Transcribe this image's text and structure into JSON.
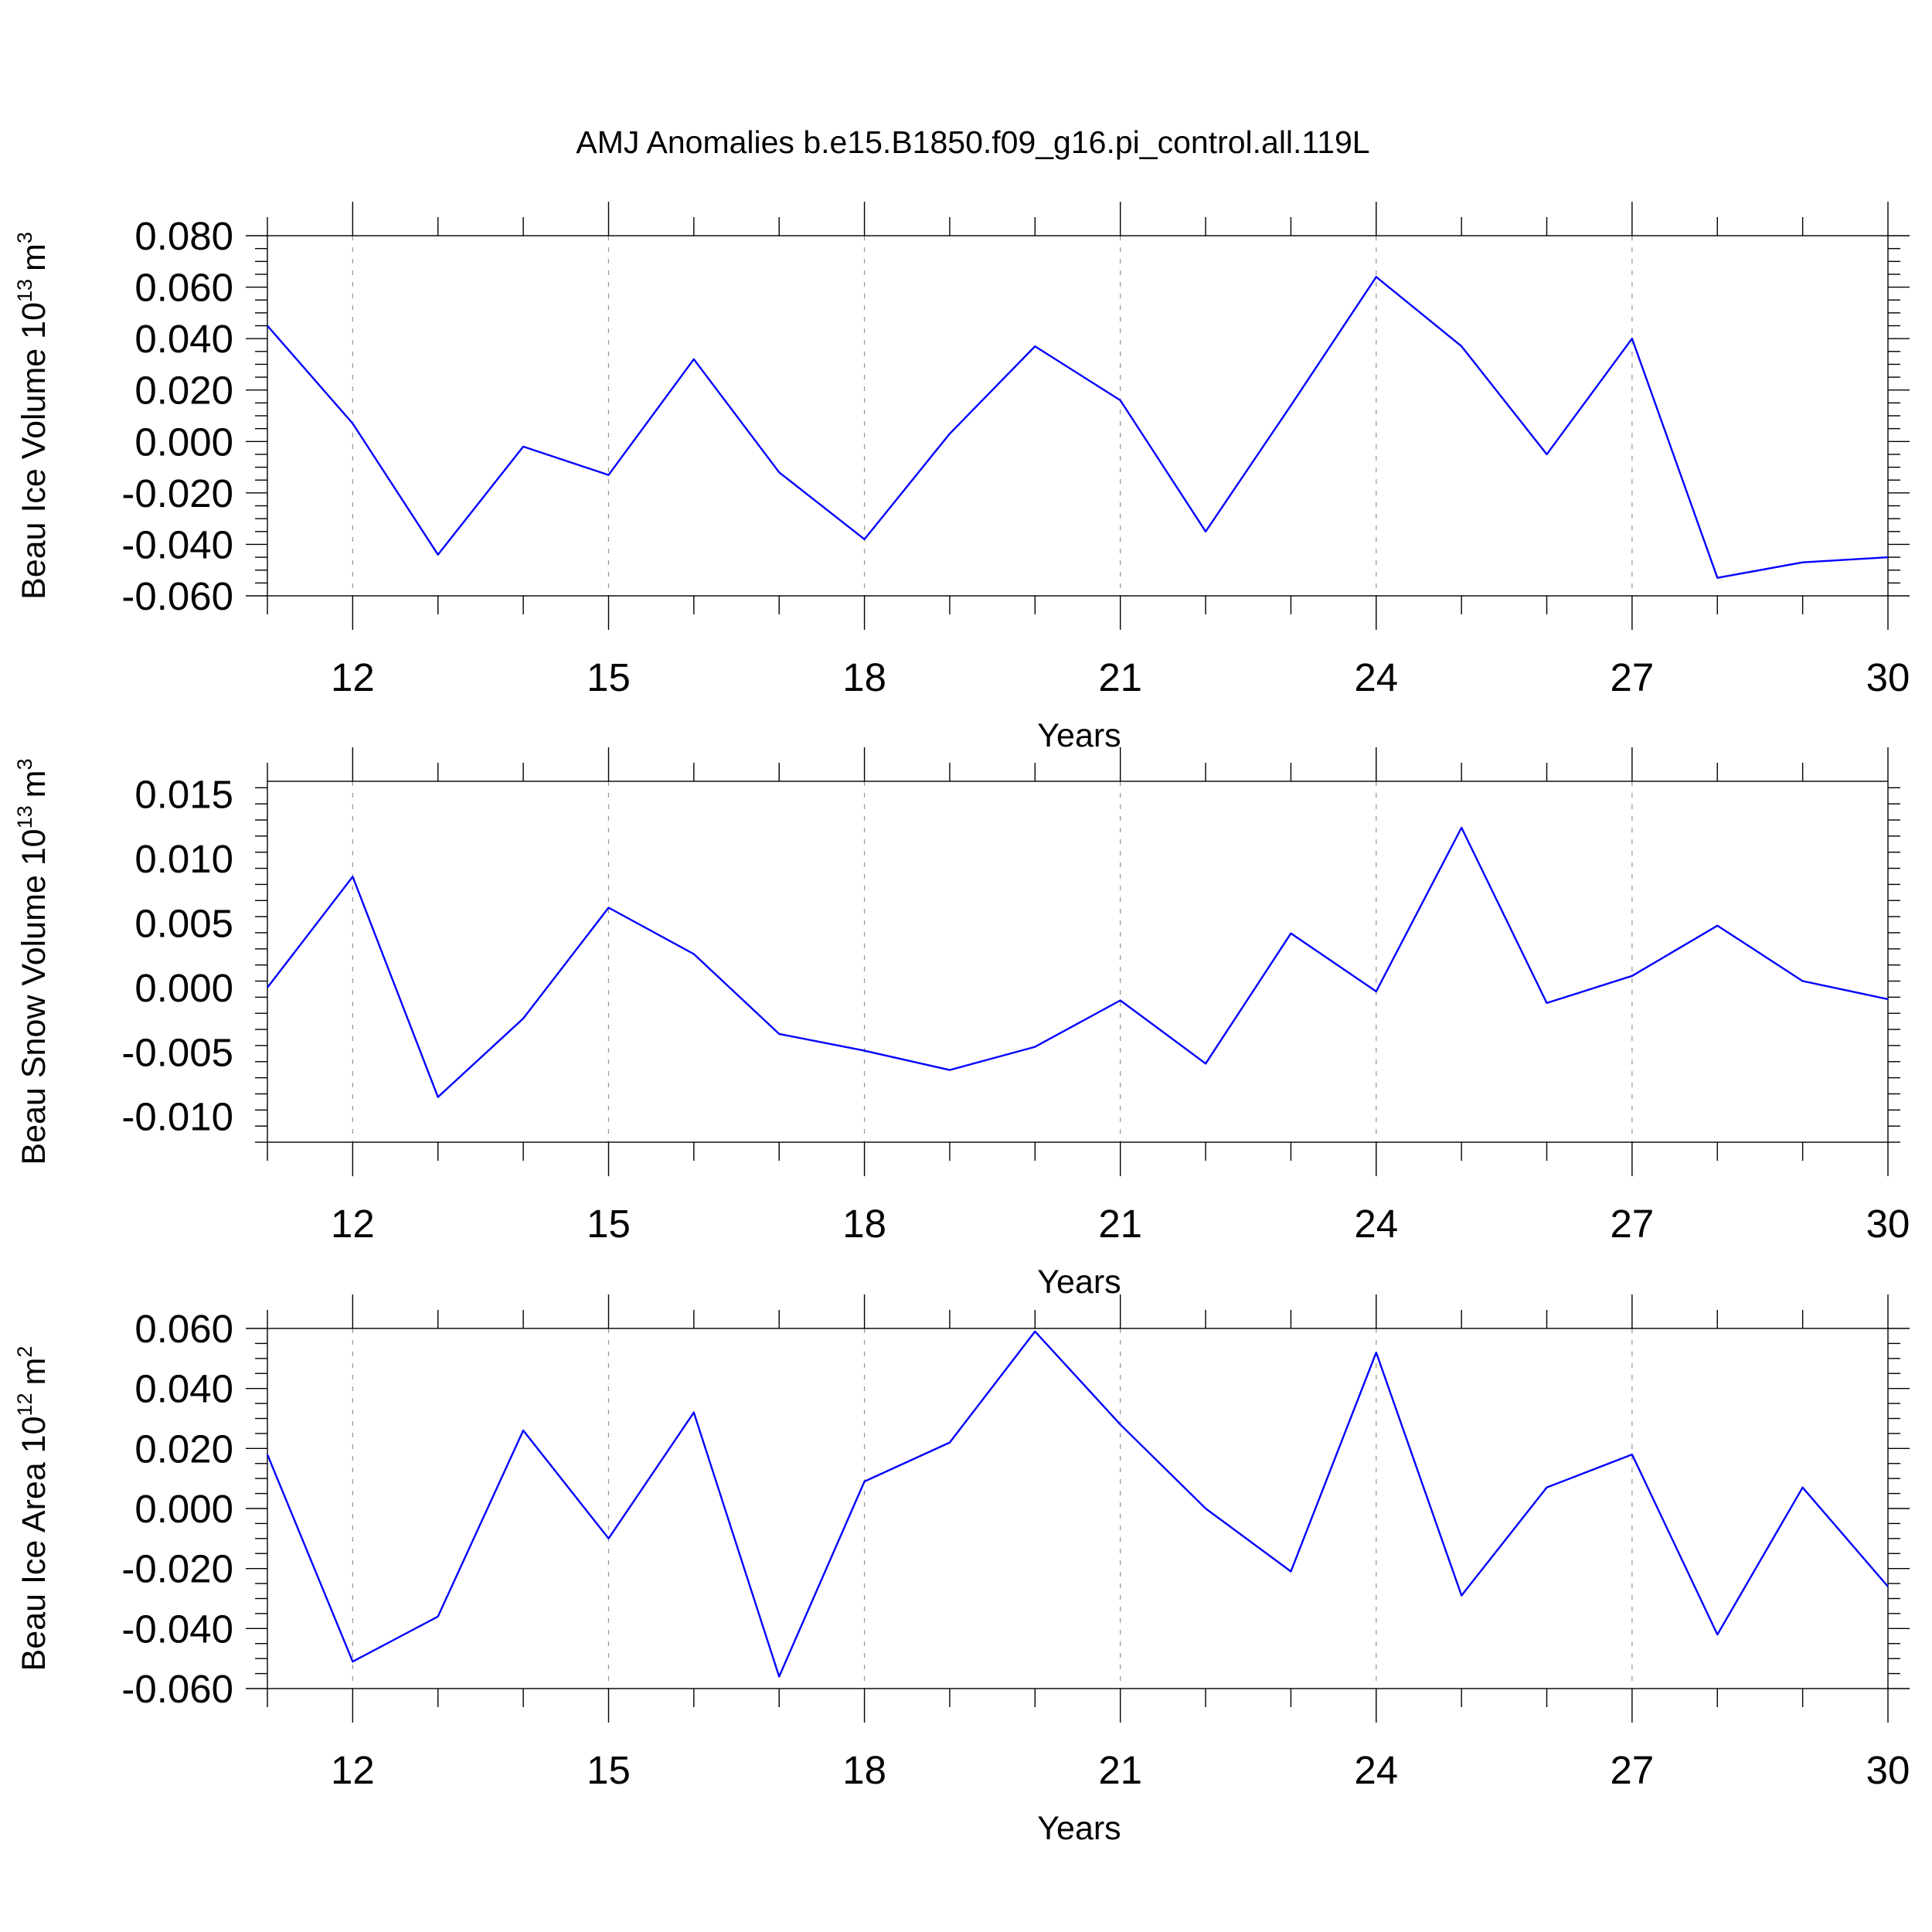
{
  "title": "AMJ Anomalies b.e15.B1850.f09_g16.pi_control.all.119L",
  "line_color": "#0000ff",
  "chart_data": [
    {
      "type": "line",
      "title": "",
      "xlabel": "Years",
      "ylabel": {
        "text": "Beau Ice Volume 10",
        "sup": "13",
        "unit": "m",
        "unit_sup": "3"
      },
      "xlim": [
        11,
        30
      ],
      "ylim": [
        -0.06,
        0.08
      ],
      "x_ticks": [
        12,
        15,
        18,
        21,
        24,
        27,
        30
      ],
      "y_ticks": [
        "0.080",
        "0.060",
        "0.040",
        "0.020",
        "0.000",
        "-0.020",
        "-0.040",
        "-0.060"
      ],
      "y_tick_values": [
        0.08,
        0.06,
        0.04,
        0.02,
        0.0,
        -0.02,
        -0.04,
        -0.06
      ],
      "x_grid": "dashed at major ticks",
      "series": [
        {
          "x": [
            11,
            12,
            13,
            14,
            15,
            16,
            17,
            18,
            19,
            20,
            21,
            22,
            23,
            24,
            25,
            26,
            27,
            28,
            29,
            30
          ],
          "values": [
            0.045,
            0.007,
            -0.044,
            -0.002,
            -0.013,
            0.032,
            -0.012,
            -0.038,
            0.003,
            0.037,
            0.016,
            -0.035,
            0.014,
            0.064,
            0.037,
            -0.005,
            0.04,
            -0.053,
            -0.047,
            -0.045
          ]
        }
      ]
    },
    {
      "type": "line",
      "title": "",
      "xlabel": "Years",
      "ylabel": {
        "text": "Beau Snow Volume 10",
        "sup": "13",
        "unit": "m",
        "unit_sup": "3"
      },
      "xlim": [
        11,
        30
      ],
      "ylim": [
        -0.012,
        0.016
      ],
      "x_ticks": [
        12,
        15,
        18,
        21,
        24,
        27,
        30
      ],
      "y_ticks": [
        "0.015",
        "0.010",
        "0.005",
        "0.000",
        "-0.005",
        "-0.010"
      ],
      "y_tick_values": [
        0.015,
        0.01,
        0.005,
        0.0,
        -0.005,
        -0.01
      ],
      "x_grid": "dashed at major ticks",
      "series": [
        {
          "x": [
            11,
            12,
            13,
            14,
            15,
            16,
            17,
            18,
            19,
            20,
            21,
            22,
            23,
            24,
            25,
            26,
            27,
            28,
            29,
            30
          ],
          "values": [
            0.0,
            0.0086,
            -0.0085,
            -0.0024,
            0.0062,
            0.0026,
            -0.0036,
            -0.0049,
            -0.0064,
            -0.0046,
            -0.001,
            -0.0059,
            0.0042,
            -0.0003,
            0.0124,
            -0.0012,
            0.0009,
            0.0048,
            0.0005,
            -0.0009
          ]
        }
      ]
    },
    {
      "type": "line",
      "title": "",
      "xlabel": "Years",
      "ylabel": {
        "text": "Beau Ice Area 10",
        "sup": "12",
        "unit": "m",
        "unit_sup": "2"
      },
      "xlim": [
        11,
        30
      ],
      "ylim": [
        -0.06,
        0.06
      ],
      "x_ticks": [
        12,
        15,
        18,
        21,
        24,
        27,
        30
      ],
      "y_ticks": [
        "0.060",
        "0.040",
        "0.020",
        "0.000",
        "-0.020",
        "-0.040",
        "-0.060"
      ],
      "y_tick_values": [
        0.06,
        0.04,
        0.02,
        0.0,
        -0.02,
        -0.04,
        -0.06
      ],
      "x_grid": "dashed at major ticks",
      "series": [
        {
          "x": [
            11,
            12,
            13,
            14,
            15,
            16,
            17,
            18,
            19,
            20,
            21,
            22,
            23,
            24,
            25,
            26,
            27,
            28,
            29,
            30
          ],
          "values": [
            0.018,
            -0.051,
            -0.036,
            0.026,
            -0.01,
            0.032,
            -0.056,
            0.009,
            0.022,
            0.059,
            0.028,
            0.0,
            -0.021,
            0.052,
            -0.029,
            0.007,
            0.018,
            -0.042,
            0.007,
            -0.026
          ]
        }
      ]
    }
  ]
}
